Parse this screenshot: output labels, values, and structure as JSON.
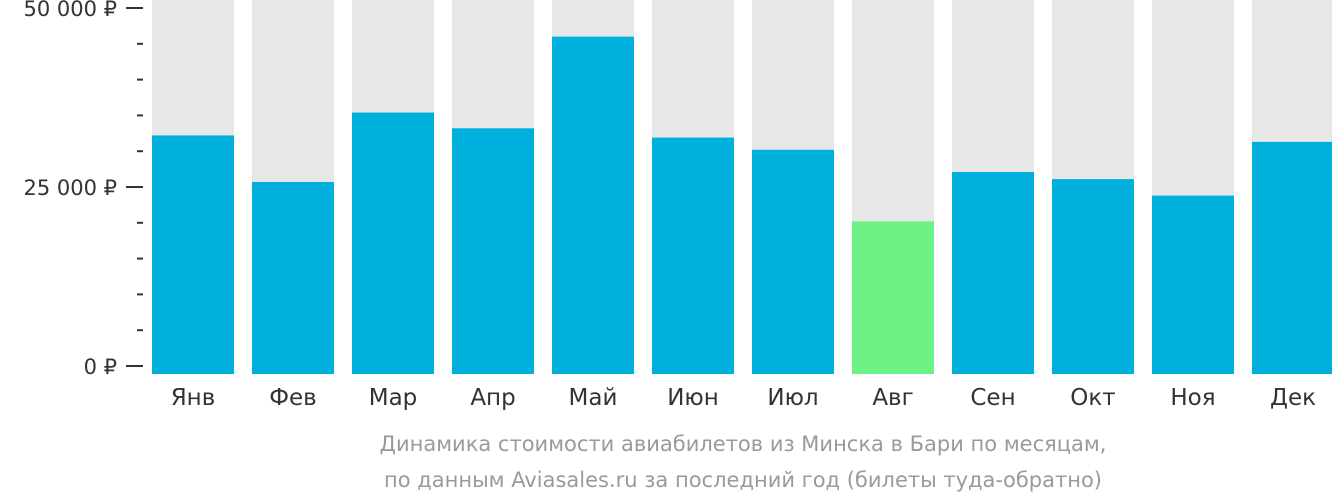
{
  "chart_data": {
    "type": "bar",
    "categories": [
      "Янв",
      "Фев",
      "Мар",
      "Апр",
      "Май",
      "Июн",
      "Июл",
      "Авг",
      "Сен",
      "Окт",
      "Ноя",
      "Дек"
    ],
    "series": [
      {
        "values": [
          32200,
          25700,
          35400,
          33200,
          46000,
          31900,
          30200,
          20200,
          27100,
          26100,
          23800,
          31300
        ]
      }
    ],
    "ylim": [
      0,
      50000
    ],
    "yticks": [
      {
        "value": 0,
        "label": "0 ₽"
      },
      {
        "value": 25000,
        "label": "25 000 ₽"
      },
      {
        "value": 50000,
        "label": "50 000 ₽"
      }
    ],
    "minor_tick_step": 5000,
    "highlight_index": 7,
    "colors": {
      "bar": "#00b0dc",
      "highlight": "#6ef184",
      "background_bar": "#e7e7e7",
      "axis": "#333333"
    },
    "grid": false,
    "legend": "none"
  },
  "caption": {
    "line1": "Динамика стоимости авиабилетов из Минска в Бари по месяцам,",
    "line2": "по данным Aviasales.ru за последний год (билеты туда-обратно)"
  }
}
